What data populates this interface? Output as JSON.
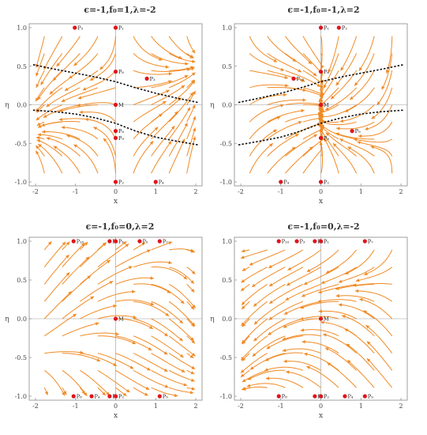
{
  "figure": {
    "stream_color": "#f08a24",
    "point_color": "#e0141c",
    "separatrix_color": "#111111",
    "axis_color": "#999999"
  },
  "chart_data": [
    {
      "type": "streamplot",
      "title": "ϵ=-1,f₀=1,λ=-2",
      "xlabel": "x",
      "ylabel": "η",
      "xlim": [
        -2,
        2
      ],
      "ylim": [
        -1,
        1
      ],
      "xticks": [
        "-2",
        "-1",
        "0",
        "1",
        "2"
      ],
      "yticks": [
        "-1.0",
        "-0.5",
        "0.0",
        "0.5",
        "1.0"
      ],
      "flow": "p1",
      "points": [
        {
          "label": "P₁",
          "x": 0,
          "y": 1
        },
        {
          "label": "P₂",
          "x": 0,
          "y": -1
        },
        {
          "label": "P₃",
          "x": 0.78,
          "y": 0.34
        },
        {
          "label": "P₄",
          "x": 1.0,
          "y": -1
        },
        {
          "label": "P₅",
          "x": -1.02,
          "y": 1
        },
        {
          "label": "P₆",
          "x": 0.0,
          "y": 0.43
        },
        {
          "label": "P₈",
          "x": 0.0,
          "y": -0.34
        },
        {
          "label": "P₉",
          "x": 0.0,
          "y": -0.43
        },
        {
          "label": "M",
          "x": 0.0,
          "y": 0.0
        }
      ],
      "separatrices": [
        {
          "x": [
            -2.2,
            -1.5,
            -1.0,
            -0.5,
            0,
            0.5,
            1.0,
            1.5,
            2.2
          ],
          "y": [
            0.52,
            0.46,
            0.41,
            0.36,
            0.3,
            0.22,
            0.15,
            0.09,
            0.03
          ]
        },
        {
          "x": [
            -2.2,
            -1.5,
            -1.0,
            -0.5,
            0,
            0.5,
            1.0,
            1.5,
            2.2
          ],
          "y": [
            -0.07,
            -0.09,
            -0.12,
            -0.17,
            -0.24,
            -0.34,
            -0.42,
            -0.47,
            -0.52
          ]
        }
      ]
    },
    {
      "type": "streamplot",
      "title": "ϵ=-1,f₀=-1,λ=2",
      "xlabel": "x",
      "ylabel": "η",
      "xlim": [
        -2,
        2
      ],
      "ylim": [
        -1,
        1
      ],
      "xticks": [
        "-2",
        "-1",
        "0",
        "1",
        "2"
      ],
      "yticks": [
        "-1.0",
        "-0.5",
        "0.0",
        "0.5",
        "1.0"
      ],
      "flow": "p2",
      "points": [
        {
          "label": "P₁",
          "x": 0,
          "y": 1
        },
        {
          "label": "P₂",
          "x": 0,
          "y": -1
        },
        {
          "label": "P₃",
          "x": 0.45,
          "y": 1
        },
        {
          "label": "P₄",
          "x": -1.0,
          "y": -1
        },
        {
          "label": "P₆",
          "x": 0.0,
          "y": 0.43
        },
        {
          "label": "P₁₀",
          "x": -0.68,
          "y": 0.34
        },
        {
          "label": "P₈",
          "x": 0.0,
          "y": -0.43
        },
        {
          "label": "P₉",
          "x": 0.78,
          "y": -0.34
        },
        {
          "label": "M",
          "x": 0.0,
          "y": 0.0
        }
      ],
      "separatrices": [
        {
          "x": [
            -2.2,
            -1.5,
            -1.0,
            -0.5,
            0,
            0.5,
            1.0,
            1.5,
            2.2
          ],
          "y": [
            0.03,
            0.09,
            0.15,
            0.22,
            0.3,
            0.36,
            0.41,
            0.46,
            0.52
          ]
        },
        {
          "x": [
            -2.2,
            -1.5,
            -1.0,
            -0.5,
            0,
            0.5,
            1.0,
            1.5,
            2.2
          ],
          "y": [
            -0.52,
            -0.47,
            -0.42,
            -0.34,
            -0.24,
            -0.17,
            -0.12,
            -0.09,
            -0.07
          ]
        }
      ]
    },
    {
      "type": "streamplot",
      "title": "ϵ=-1,f₀=0,λ=2",
      "xlabel": "x",
      "ylabel": "η",
      "xlim": [
        -2,
        2
      ],
      "ylim": [
        -1,
        1
      ],
      "xticks": [
        "-2",
        "-1",
        "0",
        "1",
        "2"
      ],
      "yticks": [
        "-1.0",
        "-0.5",
        "0.0",
        "0.5",
        "1.0"
      ],
      "flow": "p3",
      "points": [
        {
          "label": "P₁₀",
          "x": -1.05,
          "y": 1
        },
        {
          "label": "P₃",
          "x": -0.15,
          "y": 1
        },
        {
          "label": "P₁",
          "x": 0,
          "y": 1
        },
        {
          "label": "P₅",
          "x": 0.6,
          "y": 1
        },
        {
          "label": "P₇",
          "x": 1.1,
          "y": 1
        },
        {
          "label": "M",
          "x": 0,
          "y": 0
        },
        {
          "label": "P₈",
          "x": -1.05,
          "y": -1
        },
        {
          "label": "P₄",
          "x": -0.6,
          "y": -1
        },
        {
          "label": "P₅",
          "x": -0.15,
          "y": -1
        },
        {
          "label": "P₂",
          "x": 0,
          "y": -1
        },
        {
          "label": "P₉",
          "x": 1.1,
          "y": -1
        }
      ],
      "separatrices": []
    },
    {
      "type": "streamplot",
      "title": "ϵ=-1,f₀=0,λ=-2",
      "xlabel": "x",
      "ylabel": "η",
      "xlim": [
        -2,
        2
      ],
      "ylim": [
        -1,
        1
      ],
      "xticks": [
        "-2",
        "-1",
        "0",
        "1",
        "2"
      ],
      "yticks": [
        "-1.0",
        "-0.5",
        "0.0",
        "0.5",
        "1.0"
      ],
      "flow": "p4",
      "points": [
        {
          "label": "P₁₀",
          "x": -1.05,
          "y": 1
        },
        {
          "label": "P₃",
          "x": -0.6,
          "y": 1
        },
        {
          "label": "P₆",
          "x": -0.15,
          "y": 1
        },
        {
          "label": "P₁",
          "x": 0,
          "y": 1
        },
        {
          "label": "P₇",
          "x": 1.1,
          "y": 1
        },
        {
          "label": "M",
          "x": 0,
          "y": 0
        },
        {
          "label": "P₈",
          "x": -1.05,
          "y": -1
        },
        {
          "label": "P₅",
          "x": -0.15,
          "y": -1
        },
        {
          "label": "P₂",
          "x": 0,
          "y": -1
        },
        {
          "label": "P₄",
          "x": 0.6,
          "y": -1
        },
        {
          "label": "P₉",
          "x": 1.1,
          "y": -1
        }
      ],
      "separatrices": []
    }
  ]
}
